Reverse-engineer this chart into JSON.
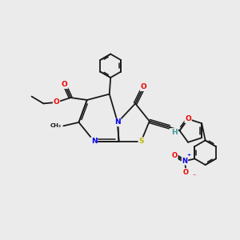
{
  "background_color": "#ebebeb",
  "bond_color": "#1a1a1a",
  "atom_colors": {
    "N": "#0000ee",
    "O": "#ee0000",
    "S": "#bbbb00",
    "H": "#3a9999",
    "C": "#1a1a1a"
  },
  "font_size_atom": 6.5
}
